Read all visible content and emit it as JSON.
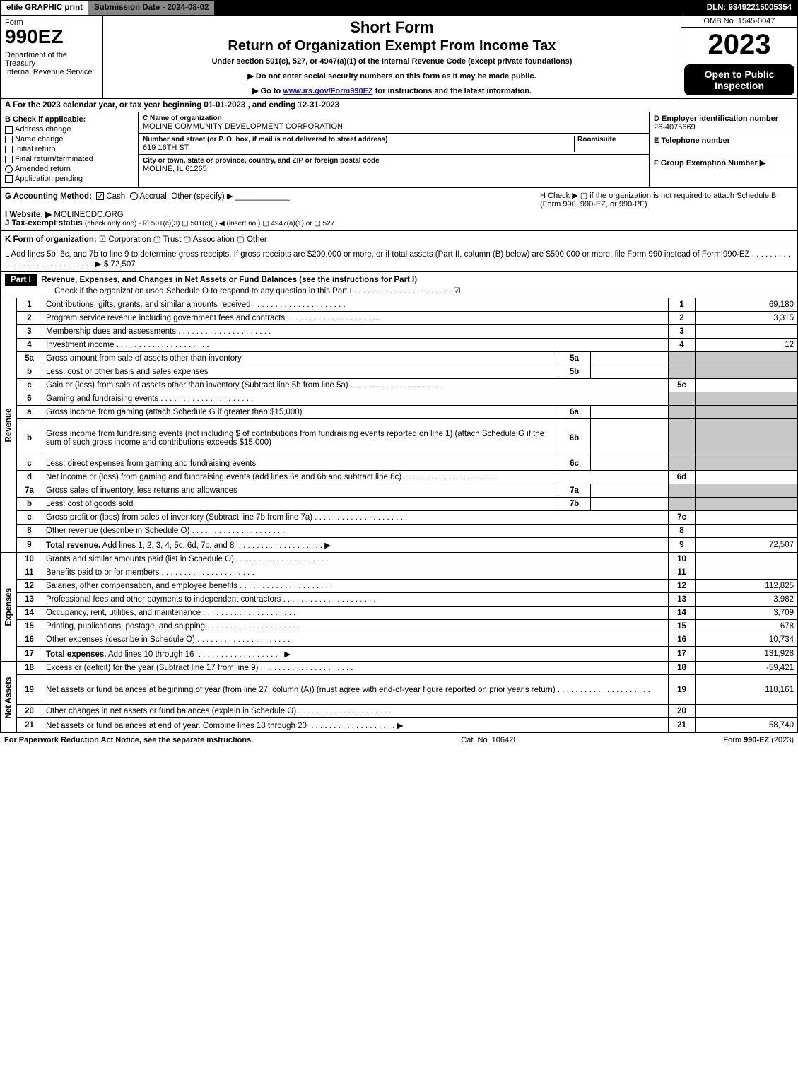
{
  "topbar": {
    "efile": "efile GRAPHIC print",
    "subdate_label": "Submission Date - ",
    "subdate": "2024-08-02",
    "dln_label": "DLN: ",
    "dln": "93492215005354"
  },
  "header": {
    "form": "Form",
    "form_num": "990EZ",
    "dept": "Department of the Treasury\nInternal Revenue Service",
    "title1": "Short Form",
    "title2": "Return of Organization Exempt From Income Tax",
    "under": "Under section 501(c), 527, or 4947(a)(1) of the Internal Revenue Code (except private foundations)",
    "bullet1": "▶ Do not enter social security numbers on this form as it may be made public.",
    "bullet2_pre": "▶ Go to ",
    "bullet2_link": "www.irs.gov/Form990EZ",
    "bullet2_post": " for instructions and the latest information.",
    "omb": "OMB No. 1545-0047",
    "year": "2023",
    "inspection": "Open to Public Inspection"
  },
  "A": {
    "text": "A  For the 2023 calendar year, or tax year beginning 01-01-2023 , and ending 12-31-2023"
  },
  "B": {
    "hdr": "B  Check if applicable:",
    "opts": [
      "Address change",
      "Name change",
      "Initial return",
      "Final return/terminated",
      "Amended return",
      "Application pending"
    ]
  },
  "C": {
    "name_lab": "C Name of organization",
    "name": "MOLINE COMMUNITY DEVELOPMENT CORPORATION",
    "street_lab": "Number and street (or P. O. box, if mail is not delivered to street address)",
    "room_lab": "Room/suite",
    "street": "619 16TH ST",
    "city_lab": "City or town, state or province, country, and ZIP or foreign postal code",
    "city": "MOLINE, IL  61265"
  },
  "DEF": {
    "D_lab": "D Employer identification number",
    "D": "26-4075669",
    "E_lab": "E Telephone number",
    "F_lab": "F Group Exemption Number   ▶"
  },
  "G": {
    "label": "G Accounting Method:",
    "cash": "Cash",
    "accrual": "Accrual",
    "other": "Other (specify) ▶"
  },
  "H": {
    "text": "H  Check ▶  ▢  if the organization is not required to attach Schedule B (Form 990, 990-EZ, or 990-PF)."
  },
  "I": {
    "label": "I Website: ▶",
    "val": "MOLINECDC.ORG"
  },
  "J": {
    "label": "J Tax-exempt status",
    "rest": "(check only one) -  ☑ 501(c)(3)  ▢ 501(c)(  ) ◀ (insert no.)  ▢ 4947(a)(1) or  ▢ 527"
  },
  "K": {
    "label": "K Form of organization:",
    "rest": " ☑ Corporation   ▢ Trust   ▢ Association   ▢ Other"
  },
  "L": {
    "text": "L Add lines 5b, 6c, and 7b to line 9 to determine gross receipts. If gross receipts are $200,000 or more, or if total assets (Part II, column (B) below) are $500,000 or more, file Form 990 instead of Form 990-EZ  . . . . . . . . . . . . . . . . . . . . . . . . . . . . .  ▶ $ ",
    "val": "72,507"
  },
  "partI": {
    "label": "Part I",
    "title": "Revenue, Expenses, and Changes in Net Assets or Fund Balances (see the instructions for Part I)",
    "sub": "Check if the organization used Schedule O to respond to any question in this Part I . . . . . . . . . . . . . . . . . . . . . .  ☑"
  },
  "sections": {
    "revenue": "Revenue",
    "expenses": "Expenses",
    "netassets": "Net Assets"
  },
  "lines": [
    {
      "n": "1",
      "d": "Contributions, gifts, grants, and similar amounts received",
      "rn": "1",
      "amt": "69,180"
    },
    {
      "n": "2",
      "d": "Program service revenue including government fees and contracts",
      "rn": "2",
      "amt": "3,315"
    },
    {
      "n": "3",
      "d": "Membership dues and assessments",
      "rn": "3",
      "amt": ""
    },
    {
      "n": "4",
      "d": "Investment income",
      "rn": "4",
      "amt": "12"
    },
    {
      "n": "5a",
      "d": "Gross amount from sale of assets other than inventory",
      "sub": "5a",
      "subv": "",
      "shade_rn": true
    },
    {
      "n": "b",
      "d": "Less: cost or other basis and sales expenses",
      "sub": "5b",
      "subv": "",
      "shade_rn": true
    },
    {
      "n": "c",
      "d": "Gain or (loss) from sale of assets other than inventory (Subtract line 5b from line 5a)",
      "rn": "5c",
      "amt": ""
    },
    {
      "n": "6",
      "d": "Gaming and fundraising events",
      "shade_rn": true,
      "shade_amt": true
    },
    {
      "n": "a",
      "d": "Gross income from gaming (attach Schedule G if greater than $15,000)",
      "sub": "6a",
      "subv": "",
      "shade_rn": true
    },
    {
      "n": "b",
      "d": "Gross income from fundraising events (not including $                    of contributions from fundraising events reported on line 1) (attach Schedule G if the sum of such gross income and contributions exceeds $15,000)",
      "sub": "6b",
      "subv": "",
      "shade_rn": true,
      "tall": true
    },
    {
      "n": "c",
      "d": "Less: direct expenses from gaming and fundraising events",
      "sub": "6c",
      "subv": "",
      "shade_rn": true
    },
    {
      "n": "d",
      "d": "Net income or (loss) from gaming and fundraising events (add lines 6a and 6b and subtract line 6c)",
      "rn": "6d",
      "amt": ""
    },
    {
      "n": "7a",
      "d": "Gross sales of inventory, less returns and allowances",
      "sub": "7a",
      "subv": "",
      "shade_rn": true
    },
    {
      "n": "b",
      "d": "Less: cost of goods sold",
      "sub": "7b",
      "subv": "",
      "shade_rn": true
    },
    {
      "n": "c",
      "d": "Gross profit or (loss) from sales of inventory (Subtract line 7b from line 7a)",
      "rn": "7c",
      "amt": ""
    },
    {
      "n": "8",
      "d": "Other revenue (describe in Schedule O)",
      "rn": "8",
      "amt": ""
    },
    {
      "n": "9",
      "d": "Total revenue. Add lines 1, 2, 3, 4, 5c, 6d, 7c, and 8",
      "rn": "9",
      "amt": "72,507",
      "bold": true,
      "arrow": true
    }
  ],
  "exp_lines": [
    {
      "n": "10",
      "d": "Grants and similar amounts paid (list in Schedule O)",
      "rn": "10",
      "amt": ""
    },
    {
      "n": "11",
      "d": "Benefits paid to or for members",
      "rn": "11",
      "amt": ""
    },
    {
      "n": "12",
      "d": "Salaries, other compensation, and employee benefits",
      "rn": "12",
      "amt": "112,825"
    },
    {
      "n": "13",
      "d": "Professional fees and other payments to independent contractors",
      "rn": "13",
      "amt": "3,982"
    },
    {
      "n": "14",
      "d": "Occupancy, rent, utilities, and maintenance",
      "rn": "14",
      "amt": "3,709"
    },
    {
      "n": "15",
      "d": "Printing, publications, postage, and shipping",
      "rn": "15",
      "amt": "678"
    },
    {
      "n": "16",
      "d": "Other expenses (describe in Schedule O)",
      "rn": "16",
      "amt": "10,734"
    },
    {
      "n": "17",
      "d": "Total expenses. Add lines 10 through 16",
      "rn": "17",
      "amt": "131,928",
      "bold": true,
      "arrow": true
    }
  ],
  "na_lines": [
    {
      "n": "18",
      "d": "Excess or (deficit) for the year (Subtract line 17 from line 9)",
      "rn": "18",
      "amt": "-59,421"
    },
    {
      "n": "19",
      "d": "Net assets or fund balances at beginning of year (from line 27, column (A)) (must agree with end-of-year figure reported on prior year's return)",
      "rn": "19",
      "amt": "118,161",
      "tall": true
    },
    {
      "n": "20",
      "d": "Other changes in net assets or fund balances (explain in Schedule O)",
      "rn": "20",
      "amt": ""
    },
    {
      "n": "21",
      "d": "Net assets or fund balances at end of year. Combine lines 18 through 20",
      "rn": "21",
      "amt": "58,740",
      "arrow": true
    }
  ],
  "footer": {
    "left": "For Paperwork Reduction Act Notice, see the separate instructions.",
    "mid": "Cat. No. 10642I",
    "right": "Form 990-EZ (2023)"
  }
}
